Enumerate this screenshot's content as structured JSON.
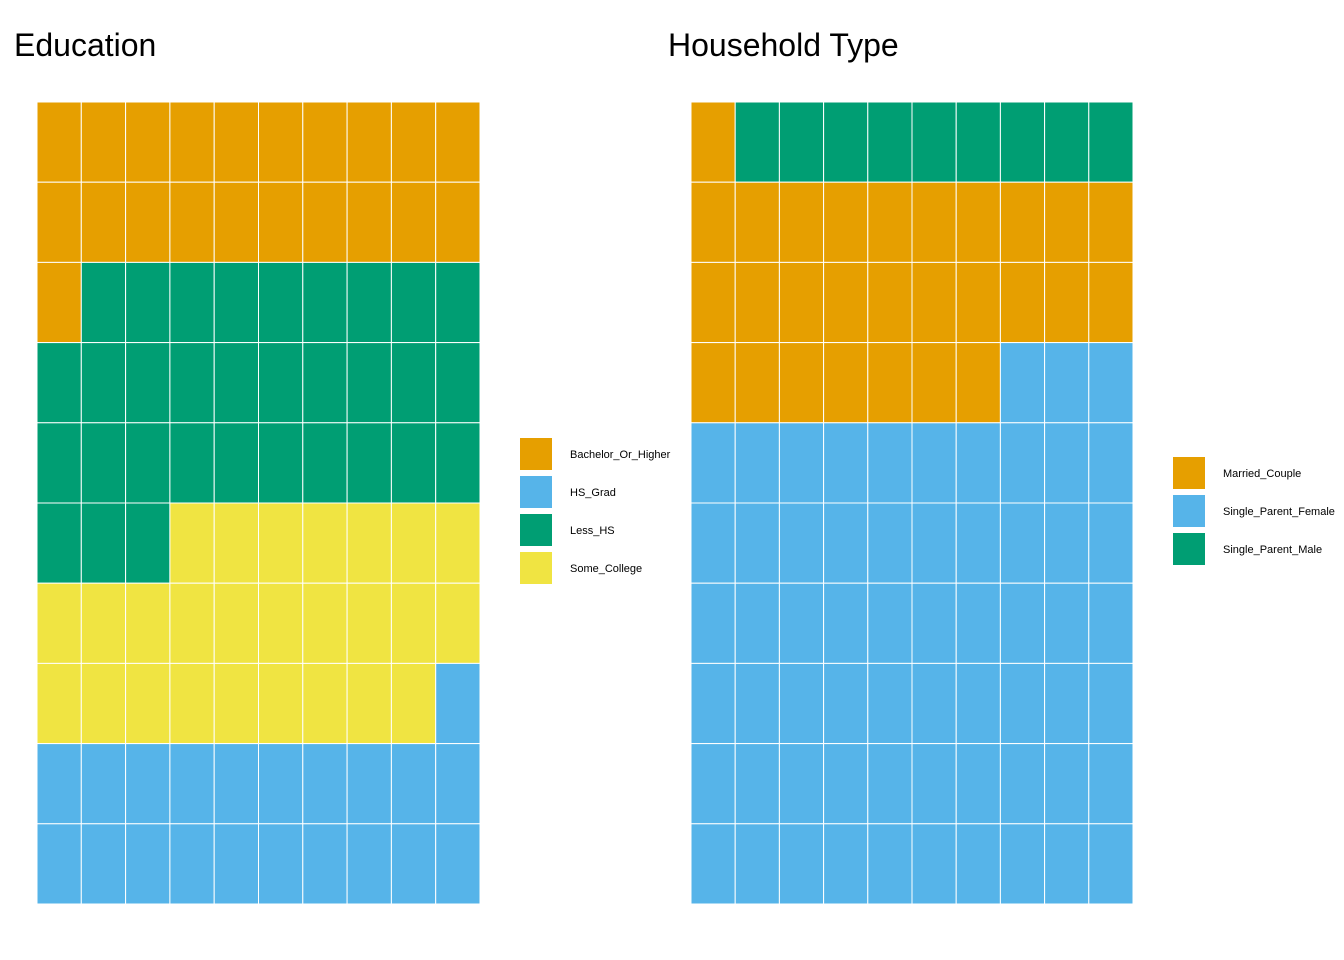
{
  "chart_data": [
    {
      "type": "waffle",
      "title": "Education",
      "rows": 10,
      "cols": 10,
      "fill_order": "row-major from top-left",
      "categories": [
        "Bachelor_Or_Higher",
        "Less_HS",
        "Some_College",
        "HS_Grad"
      ],
      "values": [
        21,
        32,
        26,
        21
      ],
      "legend": [
        "Bachelor_Or_Higher",
        "HS_Grad",
        "Less_HS",
        "Some_College"
      ],
      "legend_position": "right"
    },
    {
      "type": "waffle",
      "title": "Household Type",
      "rows": 10,
      "cols": 10,
      "fill_order": "row-major from top-left",
      "categories": [
        "Married_Couple",
        "Single_Parent_Male",
        "Married_Couple",
        "Single_Parent_Female"
      ],
      "values": [
        1,
        9,
        27,
        63
      ],
      "legend": [
        "Married_Couple",
        "Single_Parent_Female",
        "Single_Parent_Male"
      ],
      "legend_position": "right"
    }
  ],
  "colors": {
    "Bachelor_Or_Higher": "#E69F00",
    "Married_Couple": "#E69F00",
    "HS_Grad": "#56B4E9",
    "Single_Parent_Female": "#56B4E9",
    "Less_HS": "#009E73",
    "Single_Parent_Male": "#009E73",
    "Some_College": "#F0E442"
  }
}
